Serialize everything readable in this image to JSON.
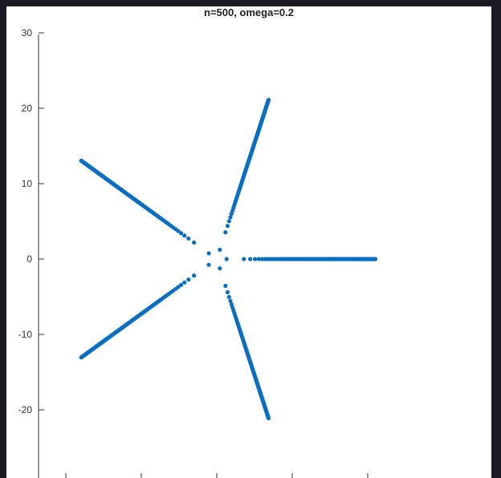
{
  "window": {
    "background": "#1c1b24"
  },
  "chart_data": {
    "type": "scatter",
    "title": "n=500, omega=0.2",
    "xlabel": "",
    "ylabel": "",
    "xlim": [
      -22,
      29
    ],
    "ylim": [
      -29,
      30
    ],
    "yticks": [
      30,
      20,
      10,
      0,
      -10,
      -20
    ],
    "ytick_labels": [
      "30",
      "20",
      "10",
      "0",
      "-10",
      "-20"
    ],
    "xticks": [
      -20,
      -10,
      0,
      10,
      20
    ],
    "grid": false,
    "marker_color": "#0a6fc2",
    "series": [
      {
        "points_per_arm": 500,
        "arms": [
          {
            "angle_deg": 0,
            "r_max": 21.0
          },
          {
            "angle_deg": 72,
            "r_max": 22.2
          },
          {
            "angle_deg": 144,
            "r_max": 22.2
          },
          {
            "angle_deg": 216,
            "r_max": 22.2
          },
          {
            "angle_deg": 288,
            "r_max": 22.2
          }
        ]
      }
    ]
  }
}
